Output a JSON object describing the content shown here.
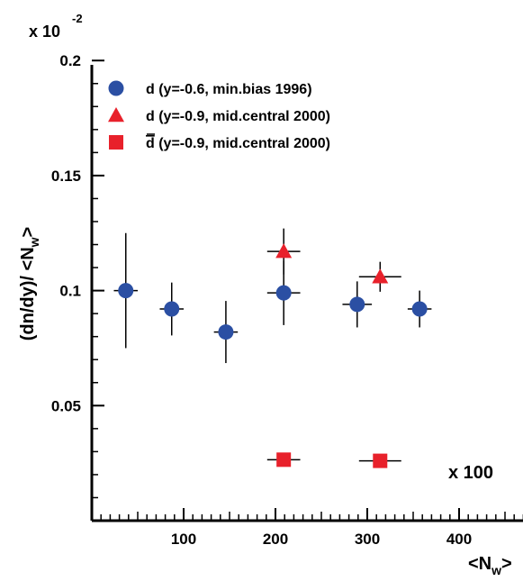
{
  "chart_data": {
    "type": "scatter",
    "title": "",
    "xlabel": "<N",
    "xlabel_sub": "w",
    "xlabel_close": ">",
    "ylabel": "(dn/dy)/ <N",
    "ylabel_sub": "w",
    "ylabel_close": ">",
    "y_multiplier_base": "x 10",
    "y_multiplier_exp": "-2",
    "xlim": [
      0,
      470
    ],
    "ylim": [
      0,
      0.21
    ],
    "x_ticks": [
      100,
      200,
      300,
      400
    ],
    "y_ticks": [
      0.05,
      0.1,
      0.15,
      0.2
    ],
    "x_tick_labels": [
      "100",
      "200",
      "300",
      "400"
    ],
    "y_tick_labels": [
      "0.05",
      "0.1",
      "0.15",
      "0.2"
    ],
    "legend_position": "top-left",
    "annotation": "x 100",
    "series": [
      {
        "name": "d (y=-0.6, min.bias 1996)",
        "marker": "circle",
        "color": "#2b4fa3",
        "points": [
          {
            "x": 37,
            "y": 0.1,
            "yerr": 0.025,
            "xerr": 13
          },
          {
            "x": 87,
            "y": 0.092,
            "yerr": 0.0115,
            "xerr": 13
          },
          {
            "x": 146,
            "y": 0.082,
            "yerr": 0.0135,
            "xerr": 13
          },
          {
            "x": 209,
            "y": 0.099,
            "yerr": 0.014,
            "xerr": 18
          },
          {
            "x": 289,
            "y": 0.094,
            "yerr": 0.01,
            "xerr": 16
          },
          {
            "x": 357,
            "y": 0.092,
            "yerr": 0.008,
            "xerr": 13
          }
        ]
      },
      {
        "name": "d (y=-0.9, mid.central 2000)",
        "marker": "triangle",
        "color": "#e8212b",
        "points": [
          {
            "x": 209,
            "y": 0.117,
            "yerr": 0.01,
            "xerr": 18
          },
          {
            "x": 314,
            "y": 0.106,
            "yerr": 0.0065,
            "xerr": 23
          }
        ]
      },
      {
        "name_bar": "d",
        "name_rest": " (y=-0.9, mid.central 2000)",
        "marker": "square",
        "color": "#e8212b",
        "points": [
          {
            "x": 209,
            "y": 0.0265,
            "yerr": 0.002,
            "xerr": 18
          },
          {
            "x": 314,
            "y": 0.026,
            "yerr": 0.001,
            "xerr": 23
          }
        ]
      }
    ]
  }
}
